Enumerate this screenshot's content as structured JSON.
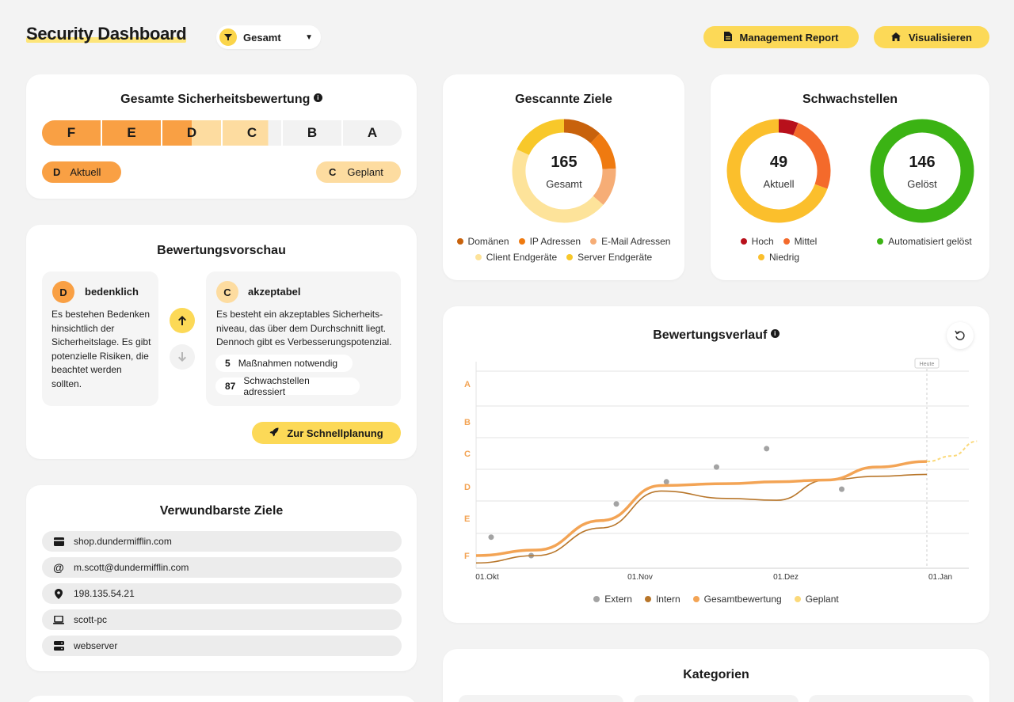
{
  "header": {
    "title": "Security Dashboard",
    "scope": "Gesamt",
    "buttons": {
      "report": "Management Report",
      "visualize": "Visualisieren"
    }
  },
  "rating": {
    "title": "Gesamte Sicherheitsbewertung",
    "grades": [
      "F",
      "E",
      "D",
      "C",
      "B",
      "A"
    ],
    "current": {
      "grade": "D",
      "label": "Aktuell"
    },
    "planned": {
      "grade": "C",
      "label": "Geplant"
    }
  },
  "preview": {
    "title": "Bewertungsvorschau",
    "current": {
      "grade": "D",
      "label": "bedenklich",
      "text": "Es bestehen Bedenken hinsichtlich der Sicherheitslage. Es gibt potenzielle Risiken, die beachtet werden sollten."
    },
    "next": {
      "grade": "C",
      "label": "akzeptabel",
      "text": "Es besteht ein akzeptables Sicherheits-niveau, das über dem Durchschnitt liegt. Dennoch gibt es Verbesserungspotenzial.",
      "measures_count": "5",
      "measures_label": "Maßnahmen notwendig",
      "vulns_count": "87",
      "vulns_label": "Schwachstellen adressiert"
    },
    "cta": "Zur Schnellplanung"
  },
  "targets": {
    "title": "Verwundbarste Ziele",
    "items": [
      {
        "icon": "credit-card-icon",
        "label": "shop.dundermifflin.com"
      },
      {
        "icon": "at-sign-icon",
        "label": "m.scott@dundermifflin.com"
      },
      {
        "icon": "location-pin-icon",
        "label": "198.135.54.21"
      },
      {
        "icon": "laptop-icon",
        "label": "scott-pc"
      },
      {
        "icon": "server-icon",
        "label": "webserver"
      }
    ]
  },
  "scanned": {
    "title": "Gescannte Ziele",
    "total": "165",
    "total_label": "Gesamt",
    "segments": [
      {
        "name": "Domänen",
        "value": 20,
        "color": "#c8620c"
      },
      {
        "name": "IP Adressen",
        "value": 20,
        "color": "#ef7a10"
      },
      {
        "name": "E-Mail Adressen",
        "value": 20,
        "color": "#f6ad76"
      },
      {
        "name": "Client Endgeräte",
        "value": 75,
        "color": "#fde39a"
      },
      {
        "name": "Server Endgeräte",
        "value": 30,
        "color": "#f8c82a"
      }
    ]
  },
  "vulns": {
    "title": "Schwachstellen",
    "current_total": "49",
    "current_label": "Aktuell",
    "resolved_total": "146",
    "resolved_label": "Gelöst",
    "segments": [
      {
        "name": "Hoch",
        "value": 3,
        "color": "#b8101b"
      },
      {
        "name": "Mittel",
        "value": 12,
        "color": "#f46a2b"
      },
      {
        "name": "Niedrig",
        "value": 34,
        "color": "#fbbf2c"
      }
    ],
    "resolved_segments": [
      {
        "name": "Automatisiert gelöst",
        "value": 146,
        "color": "#3bb314"
      }
    ]
  },
  "history": {
    "title": "Bewertungsverlauf",
    "today_label": "Heute",
    "chart_data": {
      "type": "line",
      "title": "Bewertungsverlauf",
      "x_ticks": [
        "01.Okt",
        "01.Nov",
        "01.Dez",
        "01.Jan"
      ],
      "y_ticks": [
        "A",
        "B",
        "C",
        "D",
        "E",
        "F"
      ],
      "y_range": [
        0,
        5
      ],
      "series": [
        {
          "name": "Extern",
          "type": "scatter",
          "color": "#a3a3a3",
          "points": [
            [
              0.03,
              0.5
            ],
            [
              0.11,
              0.0
            ],
            [
              0.28,
              1.4
            ],
            [
              0.38,
              2.0
            ],
            [
              0.48,
              2.4
            ],
            [
              0.58,
              2.9
            ],
            [
              0.73,
              1.8
            ]
          ]
        },
        {
          "name": "Intern",
          "color": "#b8762a",
          "points": [
            [
              0.0,
              -0.2
            ],
            [
              0.12,
              0.0
            ],
            [
              0.25,
              0.75
            ],
            [
              0.37,
              1.75
            ],
            [
              0.5,
              1.55
            ],
            [
              0.6,
              1.5
            ],
            [
              0.7,
              2.05
            ],
            [
              0.8,
              2.15
            ],
            [
              0.9,
              2.2
            ]
          ]
        },
        {
          "name": "Gesamtbewertung",
          "color": "#f3a455",
          "points": [
            [
              0.0,
              0.0
            ],
            [
              0.12,
              0.15
            ],
            [
              0.25,
              0.95
            ],
            [
              0.37,
              1.9
            ],
            [
              0.5,
              1.95
            ],
            [
              0.6,
              2.0
            ],
            [
              0.7,
              2.05
            ],
            [
              0.8,
              2.4
            ],
            [
              0.9,
              2.55
            ]
          ]
        },
        {
          "name": "Geplant",
          "color": "#fbd97a",
          "dashed": true,
          "points": [
            [
              0.9,
              2.55
            ],
            [
              0.95,
              2.7
            ],
            [
              1.0,
              3.1
            ]
          ]
        }
      ]
    }
  },
  "categories": {
    "title": "Kategorien"
  },
  "colors": {
    "accent": "#fcd957",
    "grade_f": "#f9a044",
    "grade_current": "#f9a044",
    "grade_planned": "#fddca0",
    "grade_neutral": "#f2f2f2"
  }
}
